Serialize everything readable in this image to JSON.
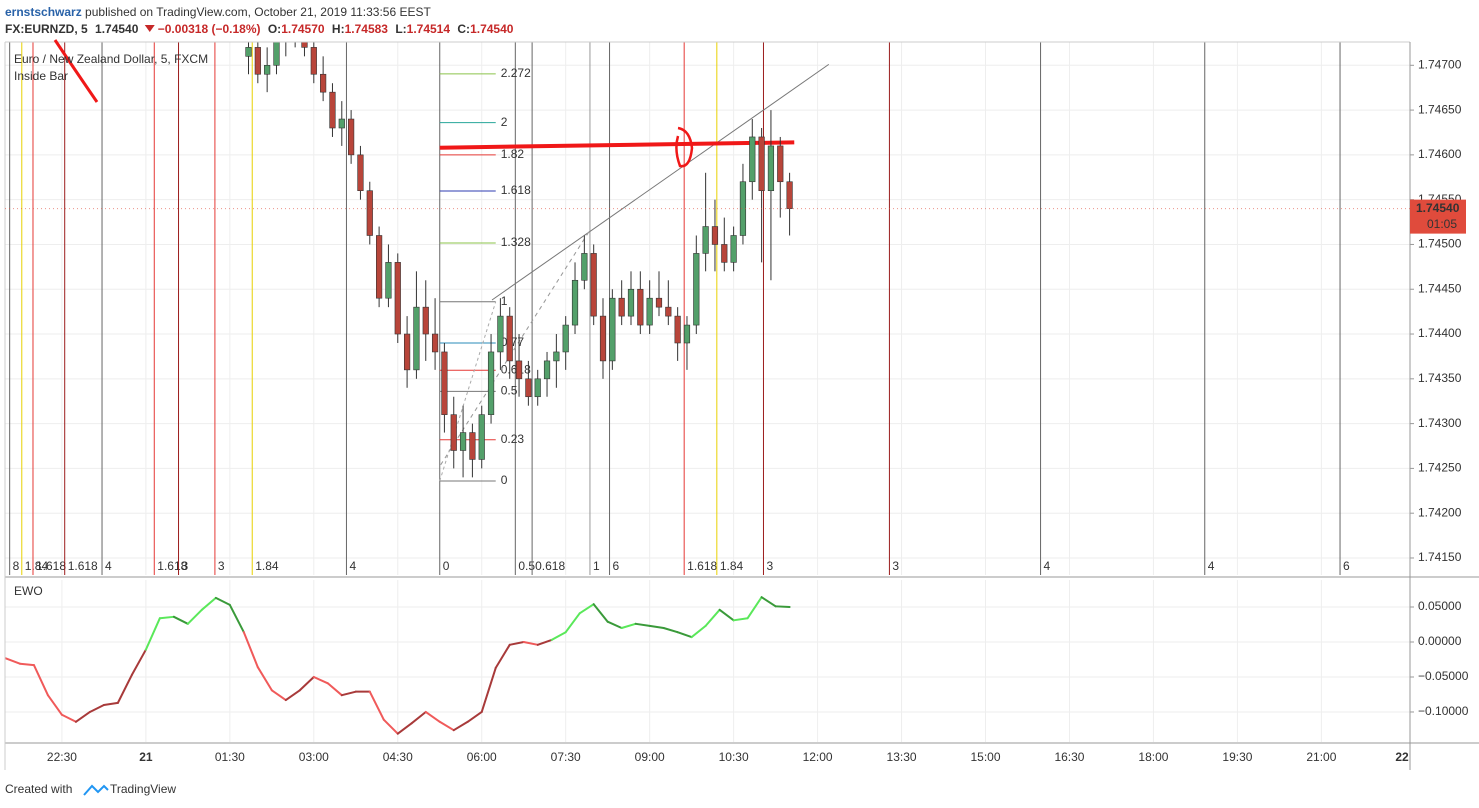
{
  "header": {
    "author": "ernstschwarz",
    "published": "published on TradingView.com, October 21, 2019 11:33:56 EEST",
    "symbol": "FX:EURNZD, 5",
    "last": "1.74540",
    "change": "−0.00318 (−0.18%)",
    "open_label": "O:",
    "open": "1.74570",
    "high_label": "H:",
    "high": "1.74583",
    "low_label": "L:",
    "low": "1.74514",
    "close_label": "C:",
    "close": "1.74540"
  },
  "chart_data": [
    {
      "type": "candlestick",
      "title": "Euro / New Zealand Dollar, 5, FXCM",
      "indicator": "Inside Bar",
      "up_color": "#53a06a",
      "down_color": "#b8453a",
      "x": [
        "21 01:50",
        "21 02:00",
        "21 02:10",
        "21 02:20",
        "21 02:30",
        "21 02:40",
        "21 02:50",
        "21 03:00",
        "21 03:10",
        "21 03:20",
        "21 03:30",
        "21 03:40",
        "21 03:50",
        "21 04:00",
        "21 04:10",
        "21 04:20",
        "21 04:30",
        "21 04:40",
        "21 04:50",
        "21 05:00",
        "21 05:10",
        "21 05:20",
        "21 05:30",
        "21 05:40",
        "21 05:50",
        "21 06:00",
        "21 06:10",
        "21 06:20",
        "21 06:30",
        "21 06:40",
        "21 06:50",
        "21 07:00",
        "21 07:10",
        "21 07:20",
        "21 07:30",
        "21 07:40",
        "21 07:50",
        "21 08:00",
        "21 08:10",
        "21 08:20",
        "21 08:30",
        "21 08:40",
        "21 08:50",
        "21 09:00",
        "21 09:10",
        "21 09:20",
        "21 09:30",
        "21 09:40",
        "21 09:50",
        "21 10:00",
        "21 10:10",
        "21 10:20",
        "21 10:30",
        "21 10:40",
        "21 10:50",
        "21 11:00",
        "21 11:10",
        "21 11:20",
        "21 11:30"
      ],
      "open": [
        1.7471,
        1.7472,
        1.7469,
        1.747,
        1.7473,
        1.7474,
        1.7475,
        1.7472,
        1.7469,
        1.7467,
        1.7463,
        1.7464,
        1.746,
        1.7456,
        1.7451,
        1.7444,
        1.7448,
        1.744,
        1.7436,
        1.7443,
        1.744,
        1.7438,
        1.7431,
        1.7427,
        1.7429,
        1.7426,
        1.7431,
        1.7438,
        1.7442,
        1.7437,
        1.7435,
        1.7433,
        1.7435,
        1.7437,
        1.7438,
        1.7441,
        1.7446,
        1.7449,
        1.7442,
        1.7437,
        1.7444,
        1.7442,
        1.7445,
        1.7441,
        1.7444,
        1.7443,
        1.7442,
        1.7439,
        1.7441,
        1.7449,
        1.7452,
        1.745,
        1.7448,
        1.7451,
        1.7457,
        1.7462,
        1.7456,
        1.7461,
        1.7457
      ],
      "high": [
        1.7474,
        1.7474,
        1.7472,
        1.7474,
        1.7476,
        1.7477,
        1.7476,
        1.7474,
        1.7471,
        1.7468,
        1.7466,
        1.7465,
        1.7461,
        1.7457,
        1.7452,
        1.745,
        1.7449,
        1.7442,
        1.7447,
        1.7446,
        1.7444,
        1.7439,
        1.7433,
        1.7432,
        1.743,
        1.7432,
        1.744,
        1.7444,
        1.7443,
        1.744,
        1.7437,
        1.7436,
        1.7438,
        1.744,
        1.7442,
        1.7448,
        1.7451,
        1.745,
        1.7444,
        1.7445,
        1.7446,
        1.7447,
        1.7447,
        1.7446,
        1.7447,
        1.7446,
        1.7443,
        1.7442,
        1.7451,
        1.7458,
        1.7455,
        1.7453,
        1.7452,
        1.7459,
        1.7464,
        1.7463,
        1.7465,
        1.7462,
        1.7458
      ],
      "low": [
        1.7469,
        1.7468,
        1.7467,
        1.7469,
        1.7471,
        1.7472,
        1.7471,
        1.7468,
        1.7466,
        1.7462,
        1.7461,
        1.7459,
        1.7455,
        1.745,
        1.7443,
        1.7443,
        1.7439,
        1.7434,
        1.7435,
        1.7437,
        1.7436,
        1.7429,
        1.7425,
        1.7424,
        1.7424,
        1.7425,
        1.743,
        1.7436,
        1.7435,
        1.7433,
        1.7432,
        1.7432,
        1.7433,
        1.7434,
        1.7436,
        1.744,
        1.7445,
        1.7441,
        1.7435,
        1.7436,
        1.7441,
        1.7441,
        1.744,
        1.744,
        1.7442,
        1.7441,
        1.7437,
        1.7436,
        1.744,
        1.7447,
        1.7447,
        1.7447,
        1.7447,
        1.745,
        1.7455,
        1.7448,
        1.7446,
        1.7453,
        1.7451
      ],
      "close": [
        1.7472,
        1.7469,
        1.747,
        1.7473,
        1.7474,
        1.7475,
        1.7472,
        1.7469,
        1.7467,
        1.7463,
        1.7464,
        1.746,
        1.7456,
        1.7451,
        1.7444,
        1.7448,
        1.744,
        1.7436,
        1.7443,
        1.744,
        1.7438,
        1.7431,
        1.7427,
        1.7429,
        1.7426,
        1.7431,
        1.7438,
        1.7442,
        1.7437,
        1.7435,
        1.7433,
        1.7435,
        1.7437,
        1.7438,
        1.7441,
        1.7446,
        1.7449,
        1.7442,
        1.7437,
        1.7444,
        1.7442,
        1.7445,
        1.7441,
        1.7444,
        1.7443,
        1.7442,
        1.7439,
        1.7441,
        1.7449,
        1.7452,
        1.745,
        1.7448,
        1.7451,
        1.7457,
        1.7462,
        1.7456,
        1.7461,
        1.7457,
        1.7454
      ],
      "xlim": [
        "20 21:29",
        "21 22:35"
      ],
      "ylim": [
        1.74131,
        1.74726
      ],
      "yticks": [
        {
          "value": 1.7415,
          "label": "1.74150"
        },
        {
          "value": 1.742,
          "label": "1.74200"
        },
        {
          "value": 1.7425,
          "label": "1.74250"
        },
        {
          "value": 1.743,
          "label": "1.74300"
        },
        {
          "value": 1.7435,
          "label": "1.74350"
        },
        {
          "value": 1.744,
          "label": "1.74400"
        },
        {
          "value": 1.7445,
          "label": "1.74450"
        },
        {
          "value": 1.745,
          "label": "1.74500"
        },
        {
          "value": 1.7455,
          "label": "1.74550"
        },
        {
          "value": 1.746,
          "label": "1.74600"
        },
        {
          "value": 1.7465,
          "label": "1.74650"
        },
        {
          "value": 1.747,
          "label": "1.74700"
        }
      ],
      "grid": true,
      "last_price": {
        "value": 1.7454,
        "label": "1.74540"
      },
      "countdown": "01:05",
      "last_color": "#e04b3c",
      "fib": {
        "start": {
          "x": "21 05:15",
          "price": 1.74236
        },
        "end": {
          "x": "21 06:15",
          "price": 1.74436
        },
        "levels": [
          0,
          0.23,
          0.5,
          0.618,
          0.77,
          1,
          1.328,
          1.618,
          1.82,
          2,
          2.272
        ],
        "colors": [
          "#777777",
          "#e53935",
          "#777777",
          "#e53935",
          "#2a8bb8",
          "#777777",
          "#8bc34a",
          "#2c3bb0",
          "#e53935",
          "#26a69a",
          "#8bc34a"
        ]
      },
      "trend_line": {
        "x": [
          "21 06:11",
          "21 12:12"
        ],
        "price": [
          1.74438,
          1.74701
        ],
        "color": "#777777"
      },
      "dashed_line": {
        "x": [
          "21 05:16",
          "21 07:56"
        ],
        "price": [
          1.74254,
          1.74516
        ],
        "color": "#999999"
      },
      "level_line": {
        "x": [
          "21 05:15",
          "21 11:35"
        ],
        "price": [
          1.74608,
          1.74614
        ],
        "color": "#f01818"
      },
      "time_zones": [
        {
          "x": "20 21:34",
          "label": "8",
          "color": "#666666"
        },
        {
          "x": "20 21:47",
          "label": "1.84",
          "color": "#e8d000"
        },
        {
          "x": "20 21:59",
          "label": "1.618",
          "color": "#e53935"
        },
        {
          "x": "20 22:33",
          "label": "1.618",
          "color": "#9b1c1c"
        },
        {
          "x": "20 23:13",
          "label": "4",
          "color": "#666666"
        },
        {
          "x": "21 00:09",
          "label": "1.618",
          "color": "#e53935"
        },
        {
          "x": "21 00:35",
          "label": "3",
          "color": "#9b1c1c"
        },
        {
          "x": "21 01:14",
          "label": "3",
          "color": "#e53935"
        },
        {
          "x": "21 01:54",
          "label": "1.84",
          "color": "#e8d000"
        },
        {
          "x": "21 03:35",
          "label": "4",
          "color": "#666666"
        },
        {
          "x": "21 05:15",
          "label": "0",
          "color": "#666666"
        },
        {
          "x": "21 06:36",
          "label": "0.5",
          "color": "#666666"
        },
        {
          "x": "21 06:54",
          "label": "0.618",
          "color": "#666666"
        },
        {
          "x": "21 07:56",
          "label": "1",
          "color": "#999999"
        },
        {
          "x": "21 08:17",
          "label": "6",
          "color": "#666666"
        },
        {
          "x": "21 09:37",
          "label": "1.618",
          "color": "#e53935"
        },
        {
          "x": "21 10:12",
          "label": "1.84",
          "color": "#e8d000"
        },
        {
          "x": "21 11:02",
          "label": "3",
          "color": "#9b1c1c"
        },
        {
          "x": "21 13:17",
          "label": "3",
          "color": "#9b1c1c"
        },
        {
          "x": "21 15:59",
          "label": "4",
          "color": "#666666"
        },
        {
          "x": "21 18:55",
          "label": "4",
          "color": "#666666"
        },
        {
          "x": "21 21:20",
          "label": "6",
          "color": "#666666"
        }
      ]
    },
    {
      "type": "line",
      "title": "EWO",
      "x": [
        "20 21:29",
        "20 21:45",
        "20 22:00",
        "20 22:15",
        "20 22:30",
        "20 22:45",
        "20 23:00",
        "20 23:15",
        "20 23:30",
        "20 23:45",
        "21 00:00",
        "21 00:15",
        "21 00:30",
        "21 00:45",
        "21 01:00",
        "21 01:15",
        "21 01:30",
        "21 01:45",
        "21 02:00",
        "21 02:15",
        "21 02:30",
        "21 02:45",
        "21 03:00",
        "21 03:15",
        "21 03:30",
        "21 03:45",
        "21 04:00",
        "21 04:15",
        "21 04:30",
        "21 04:45",
        "21 05:00",
        "21 05:15",
        "21 05:30",
        "21 05:45",
        "21 06:00",
        "21 06:15",
        "21 06:30",
        "21 06:45",
        "21 07:00",
        "21 07:15",
        "21 07:30",
        "21 07:45",
        "21 08:00",
        "21 08:15",
        "21 08:30",
        "21 08:45",
        "21 09:00",
        "21 09:15",
        "21 09:30",
        "21 09:45",
        "21 10:00",
        "21 10:15",
        "21 10:30",
        "21 10:45",
        "21 11:00",
        "21 11:15",
        "21 11:30"
      ],
      "values": [
        -0.023,
        -0.031,
        -0.033,
        -0.076,
        -0.104,
        -0.114,
        -0.1,
        -0.09,
        -0.087,
        -0.047,
        -0.011,
        0.034,
        0.036,
        0.026,
        0.046,
        0.063,
        0.053,
        0.014,
        -0.036,
        -0.069,
        -0.083,
        -0.069,
        -0.05,
        -0.059,
        -0.076,
        -0.071,
        -0.071,
        -0.111,
        -0.131,
        -0.116,
        -0.1,
        -0.114,
        -0.126,
        -0.114,
        -0.1,
        -0.037,
        -0.004,
        0,
        -0.004,
        0.003,
        0.014,
        0.041,
        0.054,
        0.029,
        0.02,
        0.026,
        0.023,
        0.02,
        0.014,
        0.007,
        0.023,
        0.046,
        0.031,
        0.034,
        0.064,
        0.051,
        0.05
      ],
      "colors": {
        "rising_above": "#5ae85a",
        "falling_above": "#3a9a3a",
        "rising_below": "#a83a3a",
        "falling_below": "#f05a5a"
      },
      "xlim": [
        "20 21:29",
        "21 22:35"
      ],
      "ylim": [
        -0.1429,
        0.0886
      ],
      "yticks": [
        {
          "value": -0.1,
          "label": "−0.10000"
        },
        {
          "value": -0.05,
          "label": "−0.05000"
        },
        {
          "value": 0,
          "label": "0.00000"
        },
        {
          "value": 0.05,
          "label": "0.05000"
        }
      ],
      "xticks": [
        {
          "value": "20 22:30",
          "label": "22:30"
        },
        {
          "value": "21 00:00",
          "label": "21"
        },
        {
          "value": "21 01:30",
          "label": "01:30"
        },
        {
          "value": "21 03:00",
          "label": "03:00"
        },
        {
          "value": "21 04:30",
          "label": "04:30"
        },
        {
          "value": "21 06:00",
          "label": "06:00"
        },
        {
          "value": "21 07:30",
          "label": "07:30"
        },
        {
          "value": "21 09:00",
          "label": "09:00"
        },
        {
          "value": "21 10:30",
          "label": "10:30"
        },
        {
          "value": "21 12:00",
          "label": "12:00"
        },
        {
          "value": "21 13:30",
          "label": "13:30"
        },
        {
          "value": "21 15:00",
          "label": "15:00"
        },
        {
          "value": "21 16:30",
          "label": "16:30"
        },
        {
          "value": "21 18:00",
          "label": "18:00"
        },
        {
          "value": "21 19:30",
          "label": "19:30"
        },
        {
          "value": "21 21:00",
          "label": "21:00"
        },
        {
          "value": "22 00:00",
          "label": "22"
        }
      ],
      "grid": true
    }
  ],
  "footer": {
    "created": "Created with",
    "brand": "TradingView"
  }
}
